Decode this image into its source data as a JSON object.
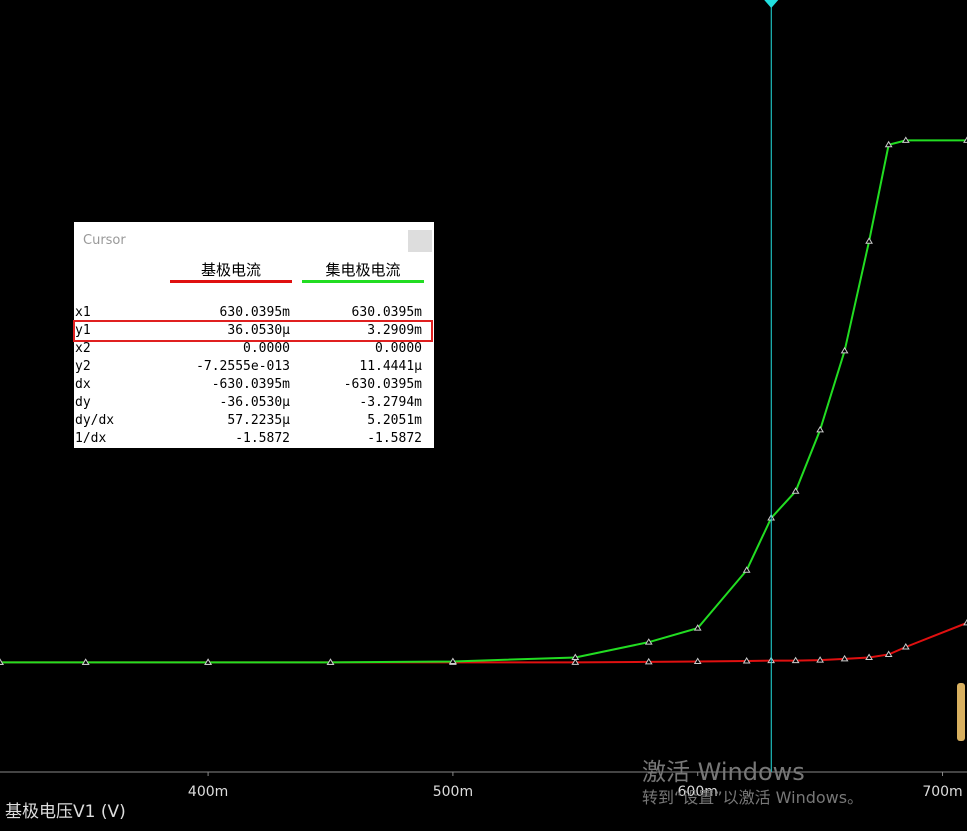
{
  "chart_data": {
    "type": "line",
    "x_label": "基极电压V1 (V)",
    "x": [
      0.315,
      0.35,
      0.4,
      0.45,
      0.5,
      0.55,
      0.58,
      0.6,
      0.62,
      0.63,
      0.64,
      0.65,
      0.66,
      0.67,
      0.678,
      0.685,
      0.71
    ],
    "series": [
      {
        "name": "基极电流",
        "color": "#e01010",
        "values": [
          0,
          0,
          0,
          0,
          0,
          0,
          1e-05,
          2e-05,
          3e-05,
          4e-05,
          4e-05,
          5e-05,
          8e-05,
          0.00011,
          0.00018,
          0.00035,
          0.0009
        ]
      },
      {
        "name": "集电极电流",
        "color": "#22dd22",
        "values": [
          0,
          0,
          0,
          0,
          2e-05,
          0.00011,
          0.00046,
          0.00078,
          0.0021,
          0.00329,
          0.0039,
          0.0053,
          0.0071,
          0.0096,
          0.0118,
          0.0119,
          0.0119
        ]
      }
    ],
    "xlim": [
      0.315,
      0.71
    ],
    "ylim": [
      -0.0025,
      0.0151
    ],
    "xticks": [
      {
        "value": 0.4,
        "label": "400m"
      },
      {
        "value": 0.5,
        "label": "500m"
      },
      {
        "value": 0.6,
        "label": "600m"
      },
      {
        "value": 0.7,
        "label": "700m"
      }
    ],
    "cursor_x": 0.6300395
  },
  "cursor": {
    "title": "Cursor",
    "rows": [
      [
        "x1",
        "630.0395m",
        "630.0395m"
      ],
      [
        "y1",
        "36.0530µ",
        "3.2909m"
      ],
      [
        "x2",
        "0.0000",
        "0.0000"
      ],
      [
        "y2",
        "-7.2555e-013",
        "11.4441µ"
      ],
      [
        "dx",
        "-630.0395m",
        "-630.0395m"
      ],
      [
        "dy",
        "-36.0530µ",
        "-3.2794m"
      ],
      [
        "dy/dx",
        "57.2235µ",
        "5.2051m"
      ],
      [
        "1/dx",
        "-1.5872",
        "-1.5872"
      ]
    ]
  },
  "watermark": {
    "title": "激活 Windows",
    "subtitle": "转到“设置”以激活 Windows。"
  }
}
